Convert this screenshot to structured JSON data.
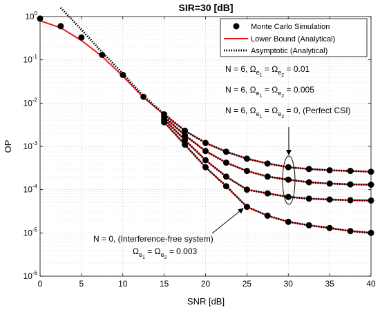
{
  "chart_data": {
    "type": "line",
    "title": "SIR=30 [dB]",
    "xlabel": "SNR [dB]",
    "ylabel": "OP",
    "xlim": [
      0,
      40
    ],
    "ylim": [
      1e-06,
      1
    ],
    "yscale": "log",
    "grid": true,
    "x_ticks": [
      0,
      5,
      10,
      15,
      20,
      25,
      30,
      35,
      40
    ],
    "y_ticks": [
      {
        "value": 1,
        "exp": "0"
      },
      {
        "value": 0.1,
        "exp": "-1"
      },
      {
        "value": 0.01,
        "exp": "-2"
      },
      {
        "value": 0.001,
        "exp": "-3"
      },
      {
        "value": 0.0001,
        "exp": "-4"
      },
      {
        "value": 1e-05,
        "exp": "-5"
      },
      {
        "value": 1e-06,
        "exp": "-6"
      }
    ],
    "legend": {
      "placement": "top-right",
      "entries": [
        {
          "label": "Monte Carlo Simulation",
          "style": "marker"
        },
        {
          "label": "Lower Bound (Analytical)",
          "style": "solid",
          "color": "#e8191b"
        },
        {
          "label": "Asymptotic (Analytical)",
          "style": "dotted",
          "color": "#000000"
        }
      ]
    },
    "series": [
      {
        "case": "N = 6, Ωe1 = Ωe2 = 0.01",
        "x": [
          0,
          2.5,
          5,
          7.5,
          10,
          12.5,
          15,
          17.5,
          20,
          22.5,
          25,
          27.5,
          30,
          32.5,
          35,
          37.5,
          40
        ],
        "simulation": [
          0.9,
          0.6,
          0.33,
          0.13,
          0.045,
          0.014,
          0.0055,
          0.0023,
          0.0012,
          0.00075,
          0.00052,
          0.0004,
          0.00033,
          0.0003,
          0.00028,
          0.00027,
          0.00026
        ],
        "lower_bound": [
          0.8,
          0.55,
          0.28,
          0.12,
          0.042,
          0.0135,
          0.0054,
          0.0023,
          0.0012,
          0.00075,
          0.00052,
          0.0004,
          0.00033,
          0.0003,
          0.00028,
          0.00027,
          0.00026
        ],
        "asymptotic": [
          null,
          1.6,
          0.5,
          0.15,
          0.048,
          0.0145,
          0.0056,
          0.0023,
          0.0012,
          0.00075,
          0.00052,
          0.0004,
          0.00033,
          0.0003,
          0.00028,
          0.00027,
          0.00026
        ]
      },
      {
        "case": "N = 6, Ωe1 = Ωe2 = 0.005",
        "x": [
          15,
          17.5,
          20,
          22.5,
          25,
          27.5,
          30,
          32.5,
          35,
          37.5,
          40
        ],
        "simulation": [
          0.0048,
          0.0018,
          0.00078,
          0.00042,
          0.00027,
          0.0002,
          0.00017,
          0.000148,
          0.000138,
          0.000132,
          0.00013
        ],
        "lower_bound": [
          0.0048,
          0.0018,
          0.00078,
          0.00042,
          0.00027,
          0.0002,
          0.00017,
          0.000148,
          0.000138,
          0.000132,
          0.00013
        ],
        "asymptotic": [
          0.0049,
          0.0018,
          0.00078,
          0.00042,
          0.00027,
          0.0002,
          0.00017,
          0.000148,
          0.000138,
          0.000132,
          0.00013
        ]
      },
      {
        "case": "N = 6, Ωe1 = Ωe2 = 0, (Perfect CSI)",
        "x": [
          15,
          17.5,
          20,
          22.5,
          25,
          27.5,
          30,
          32.5,
          35,
          37.5,
          40
        ],
        "simulation": [
          0.0042,
          0.0014,
          0.00048,
          0.0002,
          0.0001,
          8.2e-05,
          6.8e-05,
          6.2e-05,
          5.9e-05,
          5.7e-05,
          5.6e-05
        ],
        "lower_bound": [
          0.0042,
          0.0014,
          0.00048,
          0.0002,
          0.0001,
          8.2e-05,
          6.8e-05,
          6.2e-05,
          5.9e-05,
          5.7e-05,
          5.6e-05
        ],
        "asymptotic": [
          0.0043,
          0.0014,
          0.00048,
          0.0002,
          0.0001,
          8.2e-05,
          6.8e-05,
          6.2e-05,
          5.9e-05,
          5.7e-05,
          5.6e-05
        ]
      },
      {
        "case": "N = 0, (Interference-free system)",
        "x": [
          15,
          17.5,
          20,
          22.5,
          25,
          27.5,
          30,
          32.5,
          35,
          37.5,
          40
        ],
        "simulation": [
          0.0036,
          0.0011,
          0.00033,
          0.00012,
          4e-05,
          2.5e-05,
          1.8e-05,
          1.5e-05,
          1.3e-05,
          1.1e-05,
          1e-05
        ],
        "lower_bound": [
          0.0036,
          0.0011,
          0.00033,
          0.00012,
          4e-05,
          2.5e-05,
          1.8e-05,
          1.5e-05,
          1.3e-05,
          1.1e-05,
          1e-05
        ],
        "asymptotic": [
          0.0037,
          0.0011,
          0.00033,
          0.00012,
          4e-05,
          2.5e-05,
          1.8e-05,
          1.5e-05,
          1.3e-05,
          1.1e-05,
          1e-05
        ]
      }
    ],
    "annotations": [
      {
        "id": "a1",
        "main": "N = 6, Ω",
        "sub1": "e",
        "sub1b": "1",
        "mid": " = Ω",
        "sub2": "e",
        "sub2b": "2",
        "tail": " = 0.01"
      },
      {
        "id": "a2",
        "main": "N = 6, Ω",
        "sub1": "e",
        "sub1b": "1",
        "mid": " = Ω",
        "sub2": "e",
        "sub2b": "2",
        "tail": " = 0.005"
      },
      {
        "id": "a3",
        "main": "N = 6, Ω",
        "sub1": "e",
        "sub1b": "1",
        "mid": " = Ω",
        "sub2": "e",
        "sub2b": "2",
        "tail": " = 0, (Perfect CSI)"
      },
      {
        "id": "a4",
        "main": "N = 0, (Interference-free system)"
      },
      {
        "id": "a5",
        "main": "Ω",
        "sub1": "e",
        "sub1b": "1",
        "mid": " = Ω",
        "sub2": "e",
        "sub2b": "2",
        "tail": " = 0.003"
      }
    ]
  }
}
